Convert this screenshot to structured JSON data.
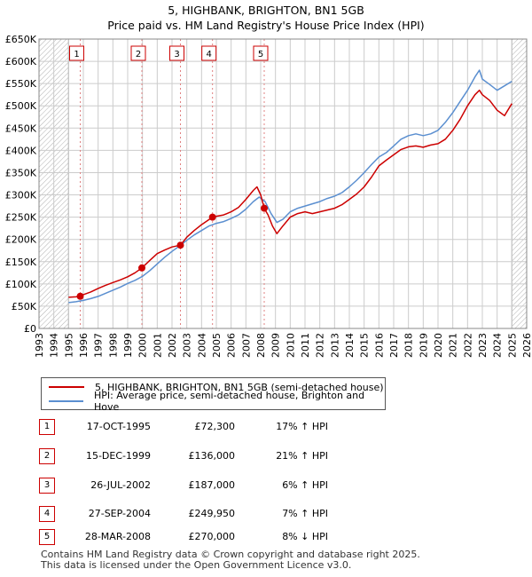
{
  "title": "5, HIGHBANK, BRIGHTON, BN1 5GB",
  "subtitle": "Price paid vs. HM Land Registry's House Price Index (HPI)",
  "colors": {
    "property_line": "#cc0000",
    "hpi_line": "#5b8fd0",
    "grid": "#cccccc",
    "sale_marker": "#cc0000",
    "hatch": "#999999"
  },
  "legend": {
    "property_label": "5, HIGHBANK, BRIGHTON, BN1 5GB (semi-detached house)",
    "hpi_label": "HPI: Average price, semi-detached house, Brighton and Hove"
  },
  "sales": [
    {
      "num": "1",
      "date": "17-OCT-1995",
      "price": "£72,300",
      "hpi": "17% ↑ HPI",
      "year": 1995.79,
      "value": 72300
    },
    {
      "num": "2",
      "date": "15-DEC-1999",
      "price": "£136,000",
      "hpi": "21% ↑ HPI",
      "year": 1999.96,
      "value": 136000
    },
    {
      "num": "3",
      "date": "26-JUL-2002",
      "price": "£187,000",
      "hpi": "6% ↑ HPI",
      "year": 2002.57,
      "value": 187000
    },
    {
      "num": "4",
      "date": "27-SEP-2004",
      "price": "£249,950",
      "hpi": "7% ↑ HPI",
      "year": 2004.74,
      "value": 249950
    },
    {
      "num": "5",
      "date": "28-MAR-2008",
      "price": "£270,000",
      "hpi": "8% ↓ HPI",
      "year": 2008.24,
      "value": 270000
    }
  ],
  "footer": {
    "line1": "Contains HM Land Registry data © Crown copyright and database right 2025.",
    "line2": "This data is licensed under the Open Government Licence v3.0."
  },
  "chart_data": {
    "type": "line",
    "title": "5, HIGHBANK, BRIGHTON, BN1 5GB",
    "subtitle": "Price paid vs. HM Land Registry's House Price Index (HPI)",
    "xlabel": "",
    "ylabel": "",
    "xlim": [
      1993,
      2026
    ],
    "ylim": [
      0,
      650000
    ],
    "x_ticks": [
      1993,
      1994,
      1995,
      1996,
      1997,
      1998,
      1999,
      2000,
      2001,
      2002,
      2003,
      2004,
      2005,
      2006,
      2007,
      2008,
      2009,
      2010,
      2011,
      2012,
      2013,
      2014,
      2015,
      2016,
      2017,
      2018,
      2019,
      2020,
      2021,
      2022,
      2023,
      2024,
      2025,
      2026
    ],
    "y_ticks": [
      0,
      50000,
      100000,
      150000,
      200000,
      250000,
      300000,
      350000,
      400000,
      450000,
      500000,
      550000,
      600000,
      650000
    ],
    "y_tick_labels": [
      "£0",
      "£50K",
      "£100K",
      "£150K",
      "£200K",
      "£250K",
      "£300K",
      "£350K",
      "£400K",
      "£450K",
      "£500K",
      "£550K",
      "£600K",
      "£650K"
    ],
    "hatched_ranges": [
      [
        1993,
        1995.0
      ],
      [
        2025.0,
        2026
      ]
    ],
    "series": [
      {
        "name": "5, HIGHBANK, BRIGHTON, BN1 5GB (semi-detached house)",
        "x": [
          1995.0,
          1995.5,
          1995.79,
          1996.0,
          1996.5,
          1997.0,
          1997.5,
          1998.0,
          1998.5,
          1999.0,
          1999.5,
          1999.96,
          2000.5,
          2001.0,
          2001.5,
          2002.0,
          2002.57,
          2003.0,
          2003.5,
          2004.0,
          2004.74,
          2005.0,
          2005.5,
          2006.0,
          2006.5,
          2007.0,
          2007.5,
          2007.75,
          2008.0,
          2008.24,
          2008.5,
          2008.8,
          2009.1,
          2009.5,
          2010.0,
          2010.5,
          2011.0,
          2011.5,
          2012.0,
          2012.5,
          2013.0,
          2013.5,
          2014.0,
          2014.5,
          2015.0,
          2015.5,
          2016.0,
          2016.5,
          2017.0,
          2017.5,
          2018.0,
          2018.5,
          2019.0,
          2019.5,
          2020.0,
          2020.5,
          2021.0,
          2021.5,
          2022.0,
          2022.5,
          2022.8,
          2023.0,
          2023.5,
          2024.0,
          2024.5,
          2025.0
        ],
        "y": [
          70000,
          71000,
          72300,
          76000,
          82000,
          90000,
          97000,
          103000,
          109000,
          116000,
          125000,
          136000,
          153000,
          168000,
          176000,
          183000,
          187000,
          205000,
          220000,
          233000,
          249950,
          252000,
          255000,
          262000,
          272000,
          290000,
          310000,
          318000,
          300000,
          270000,
          255000,
          230000,
          213000,
          230000,
          250000,
          258000,
          262000,
          258000,
          262000,
          266000,
          270000,
          278000,
          290000,
          302000,
          318000,
          340000,
          365000,
          378000,
          390000,
          402000,
          408000,
          410000,
          407000,
          412000,
          415000,
          425000,
          445000,
          470000,
          500000,
          525000,
          535000,
          525000,
          512000,
          490000,
          478000,
          505000
        ]
      },
      {
        "name": "HPI: Average price, semi-detached house, Brighton and Hove",
        "x": [
          1995.0,
          1995.5,
          1996.0,
          1996.5,
          1997.0,
          1997.5,
          1998.0,
          1998.5,
          1999.0,
          1999.5,
          2000.0,
          2000.5,
          2001.0,
          2001.5,
          2002.0,
          2002.5,
          2003.0,
          2003.5,
          2004.0,
          2004.5,
          2005.0,
          2005.5,
          2006.0,
          2006.5,
          2007.0,
          2007.5,
          2007.9,
          2008.3,
          2008.7,
          2009.1,
          2009.5,
          2010.0,
          2010.5,
          2011.0,
          2011.5,
          2012.0,
          2012.5,
          2013.0,
          2013.5,
          2014.0,
          2014.5,
          2015.0,
          2015.5,
          2016.0,
          2016.5,
          2017.0,
          2017.5,
          2018.0,
          2018.5,
          2019.0,
          2019.5,
          2020.0,
          2020.5,
          2021.0,
          2021.5,
          2022.0,
          2022.5,
          2022.8,
          2023.0,
          2023.5,
          2024.0,
          2024.5,
          2025.0
        ],
        "y": [
          58000,
          60000,
          63000,
          67000,
          72000,
          79000,
          86000,
          93000,
          101000,
          108000,
          117000,
          130000,
          145000,
          160000,
          173000,
          185000,
          198000,
          210000,
          220000,
          230000,
          236000,
          240000,
          247000,
          255000,
          268000,
          285000,
          295000,
          285000,
          258000,
          238000,
          245000,
          262000,
          270000,
          275000,
          280000,
          285000,
          292000,
          297000,
          305000,
          318000,
          333000,
          350000,
          368000,
          385000,
          395000,
          410000,
          425000,
          433000,
          437000,
          433000,
          437000,
          445000,
          463000,
          485000,
          510000,
          535000,
          565000,
          580000,
          560000,
          548000,
          535000,
          545000,
          555000
        ]
      }
    ]
  }
}
